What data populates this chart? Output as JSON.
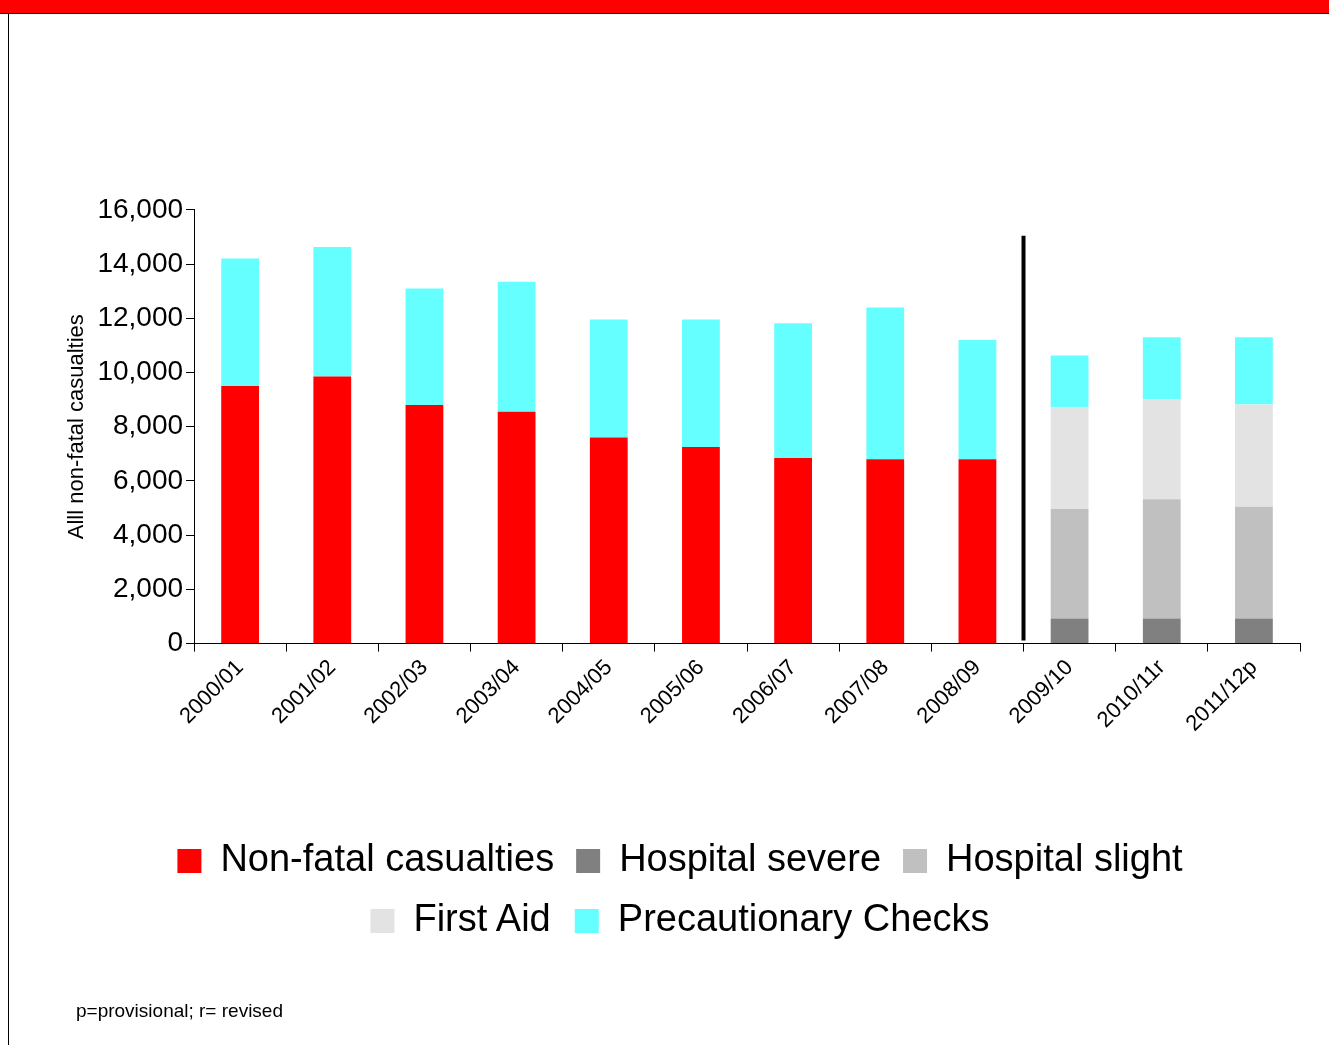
{
  "chart_data": {
    "type": "bar",
    "stacked": true,
    "ylabel": "Alll non-fatal casualties",
    "categories": [
      "2000/01",
      "2001/02",
      "2002/03",
      "2003/04",
      "2004/05",
      "2005/06",
      "2006/07",
      "2007/08",
      "2008/09",
      "2009/10",
      "2010/11r",
      "2011/12p"
    ],
    "series": [
      {
        "name": "Non-fatal casualties",
        "color": "#ff0000",
        "values": [
          9500,
          9850,
          8800,
          8550,
          7600,
          7250,
          6850,
          6800,
          6800,
          null,
          null,
          null
        ]
      },
      {
        "name": "Hospital severe",
        "color": "#808080",
        "values": [
          null,
          null,
          null,
          null,
          null,
          null,
          null,
          null,
          null,
          930,
          930,
          930
        ]
      },
      {
        "name": "Hospital slight",
        "color": "#c0c0c0",
        "values": [
          null,
          null,
          null,
          null,
          null,
          null,
          null,
          null,
          null,
          4030,
          4390,
          4120
        ]
      },
      {
        "name": "First Aid",
        "color": "#e3e3e3",
        "values": [
          null,
          null,
          null,
          null,
          null,
          null,
          null,
          null,
          null,
          3770,
          3680,
          3770
        ]
      },
      {
        "name": "Precautionary Checks",
        "color": "#66ffff",
        "values": [
          4700,
          4780,
          4300,
          4800,
          4350,
          4700,
          4970,
          5600,
          4400,
          1900,
          2300,
          2480
        ]
      }
    ],
    "ylim": [
      0,
      16000
    ],
    "yticks": [
      {
        "value": 0,
        "label": "0"
      },
      {
        "value": 2000,
        "label": "2,000"
      },
      {
        "value": 4000,
        "label": "4,000"
      },
      {
        "value": 6000,
        "label": "6,000"
      },
      {
        "value": 8000,
        "label": "8,000"
      },
      {
        "value": 10000,
        "label": "10,000"
      },
      {
        "value": 12000,
        "label": "12,000"
      },
      {
        "value": 14000,
        "label": "14,000"
      },
      {
        "value": 16000,
        "label": "16,000"
      }
    ],
    "legend": "bottom",
    "annotations": [
      "p=provisional; r= revised"
    ]
  }
}
